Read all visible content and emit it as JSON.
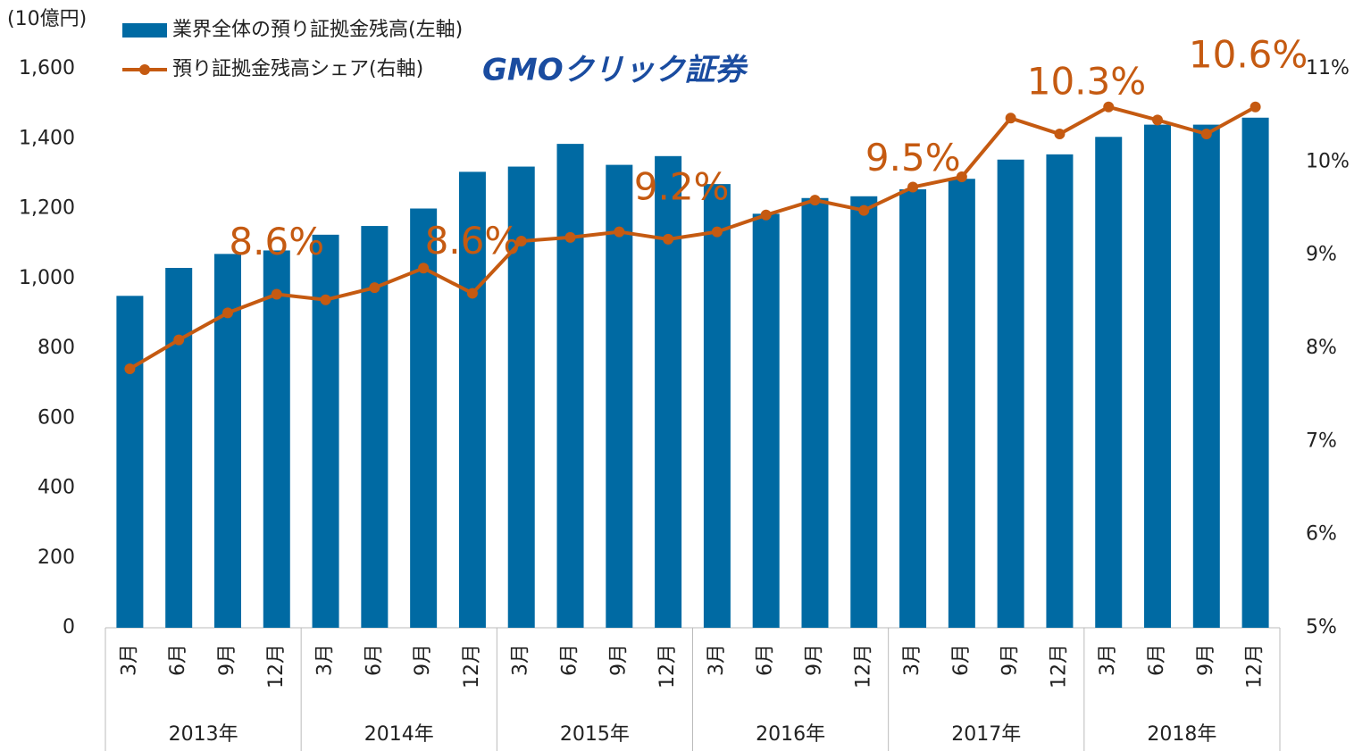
{
  "chart_data": {
    "type": "bar-line",
    "unit_label": "(10億円)",
    "logo": "GMOクリック証券",
    "categories": [
      "3月",
      "6月",
      "9月",
      "12月",
      "3月",
      "6月",
      "9月",
      "12月",
      "3月",
      "6月",
      "9月",
      "12月",
      "3月",
      "6月",
      "9月",
      "12月",
      "3月",
      "6月",
      "9月",
      "12月",
      "3月",
      "6月",
      "9月",
      "12月"
    ],
    "years": [
      "2013年",
      "2014年",
      "2015年",
      "2016年",
      "2017年",
      "2018年"
    ],
    "series": [
      {
        "name": "業界全体の預り証拠金残高(左軸)",
        "color": "#006aa3",
        "kind": "bar",
        "values": [
          950,
          1030,
          1070,
          1080,
          1125,
          1150,
          1200,
          1305,
          1320,
          1385,
          1325,
          1350,
          1270,
          1185,
          1230,
          1235,
          1255,
          1285,
          1340,
          1355,
          1405,
          1440,
          1440,
          1460
        ]
      },
      {
        "name": "預り証拠金残高シェア(右軸)",
        "color": "#c55a11",
        "kind": "line",
        "axis": "y2",
        "values": [
          7.78,
          8.09,
          8.38,
          8.58,
          8.52,
          8.65,
          8.86,
          8.59,
          9.15,
          9.19,
          9.25,
          9.17,
          9.25,
          9.43,
          9.59,
          9.48,
          9.73,
          9.84,
          10.47,
          10.3,
          10.59,
          10.45,
          10.3,
          10.59
        ],
        "value_labels": [
          null,
          null,
          null,
          "8.6%",
          null,
          null,
          null,
          "8.6%",
          null,
          null,
          null,
          "9.2%",
          null,
          null,
          null,
          "9.5%",
          null,
          null,
          null,
          "10.3%",
          null,
          null,
          null,
          "10.6%"
        ]
      }
    ],
    "ylim": [
      0,
      1600
    ],
    "yticks": [
      0,
      200,
      400,
      600,
      800,
      {
        "value": 1000,
        "label": "1,000"
      },
      {
        "value": 1200,
        "label": "1,200"
      },
      {
        "value": 1400,
        "label": "1,400"
      },
      {
        "value": 1600,
        "label": "1,600"
      }
    ],
    "y2lim": [
      5,
      11
    ],
    "y2ticks": [
      {
        "value": 5,
        "label": "5%"
      },
      {
        "value": 6,
        "label": "6%"
      },
      {
        "value": 7,
        "label": "7%"
      },
      {
        "value": 8,
        "label": "8%"
      },
      {
        "value": 9,
        "label": "9%"
      },
      {
        "value": 10,
        "label": "10%"
      },
      {
        "value": 11,
        "label": "11%"
      }
    ],
    "grid": false
  }
}
